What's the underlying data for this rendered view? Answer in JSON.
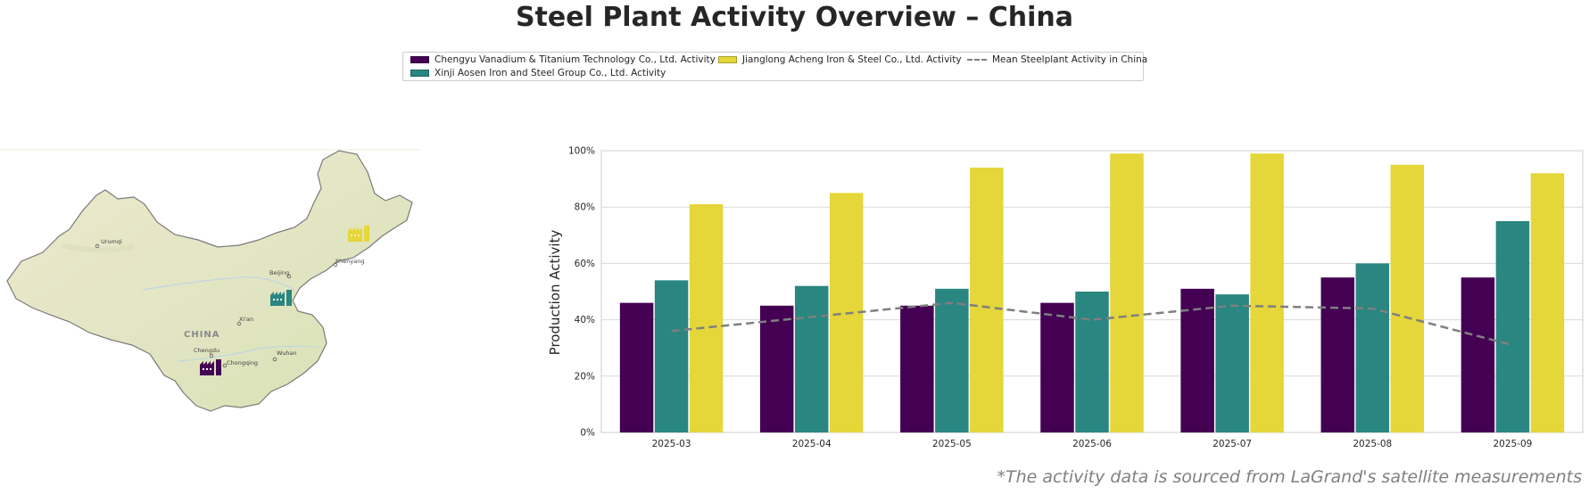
{
  "title": "Steel Plant Activity Overview – China",
  "footnote": "*The activity data is sourced from LaGrand's satellite measurements",
  "colors": {
    "chengyu": "#440154",
    "xinji": "#2a8680",
    "jianglong": "#e5d63a",
    "mean": "#7f7f7f",
    "grid": "#d9d9d9"
  },
  "legend": {
    "items": [
      {
        "label": "Chengyu Vanadium & Titanium Technology Co., Ltd. Activity",
        "kind": "swatch",
        "color": "#440154"
      },
      {
        "label": "Xinji Aosen Iron and Steel Group Co., Ltd. Activity",
        "kind": "swatch",
        "color": "#2a8680"
      },
      {
        "label": "Jianglong Acheng Iron & Steel Co., Ltd. Activity",
        "kind": "swatch",
        "color": "#e5d63a"
      },
      {
        "label": "Mean Steelplant Activity in China",
        "kind": "dash",
        "color": "#7f7f7f"
      }
    ]
  },
  "map": {
    "country_label": "CHINA",
    "cities": [
      "Urumqi",
      "Beijing",
      "Shenyang",
      "Xi'an",
      "Chengdu",
      "Chongqing",
      "Wuhan"
    ],
    "plant_icons": [
      {
        "name": "chengyu-plant-icon",
        "color": "#440154"
      },
      {
        "name": "xinji-plant-icon",
        "color": "#2a8680"
      },
      {
        "name": "jianglong-plant-icon",
        "color": "#e5d63a"
      }
    ]
  },
  "chart_data": {
    "type": "bar",
    "ylabel": "Production Activity",
    "ylim": [
      0,
      100
    ],
    "yticks": [
      "0%",
      "20%",
      "40%",
      "60%",
      "80%",
      "100%"
    ],
    "grid": true,
    "categories": [
      "2025-03",
      "2025-04",
      "2025-05",
      "2025-06",
      "2025-07",
      "2025-08",
      "2025-09"
    ],
    "series": [
      {
        "name": "Chengyu Vanadium & Titanium Technology Co., Ltd. Activity",
        "type": "bar",
        "color": "#440154",
        "values": [
          46,
          45,
          45,
          46,
          51,
          55,
          55
        ]
      },
      {
        "name": "Xinji Aosen Iron and Steel Group Co., Ltd. Activity",
        "type": "bar",
        "color": "#2a8680",
        "values": [
          54,
          52,
          51,
          50,
          49,
          60,
          75
        ]
      },
      {
        "name": "Jianglong Acheng Iron & Steel Co., Ltd. Activity",
        "type": "bar",
        "color": "#e5d63a",
        "values": [
          81,
          85,
          94,
          99,
          99,
          95,
          92
        ]
      },
      {
        "name": "Mean Steelplant Activity in China",
        "type": "line",
        "color": "#7f7f7f",
        "values": [
          36,
          41,
          46,
          40,
          45,
          44,
          31
        ]
      }
    ]
  }
}
